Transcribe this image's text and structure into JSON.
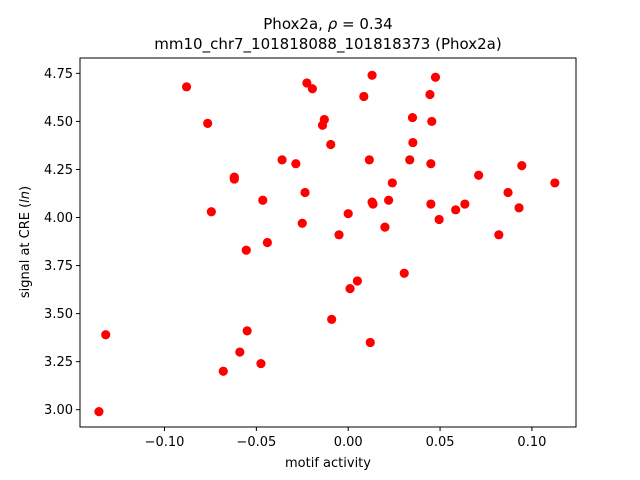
{
  "chart_data": {
    "type": "scatter",
    "title_line1_prefix": "Phox2a, ",
    "title_rho_symbol": "ρ",
    "title_rho_value": " = 0.34",
    "title_line2": "mm10_chr7_101818088_101818373 (Phox2a)",
    "xlabel": "motif activity",
    "ylabel_prefix": "signal at CRE (",
    "ylabel_italic": "ln",
    "ylabel_suffix": ")",
    "xlim": [
      -0.146,
      0.124
    ],
    "ylim": [
      2.91,
      4.83
    ],
    "xticks": [
      -0.1,
      -0.05,
      0.0,
      0.05,
      0.1
    ],
    "xtick_labels": [
      "−0.10",
      "−0.05",
      "0.00",
      "0.05",
      "0.10"
    ],
    "yticks": [
      3.0,
      3.25,
      3.5,
      3.75,
      4.0,
      4.25,
      4.5,
      4.75
    ],
    "ytick_labels": [
      "3.00",
      "3.25",
      "3.50",
      "3.75",
      "4.00",
      "4.25",
      "4.50",
      "4.75"
    ],
    "marker_color": "#ff0000",
    "grid": false,
    "points": [
      {
        "x": -0.1357,
        "y": 2.99
      },
      {
        "x": -0.132,
        "y": 3.39
      },
      {
        "x": -0.088,
        "y": 4.68
      },
      {
        "x": -0.0765,
        "y": 4.49
      },
      {
        "x": -0.0745,
        "y": 4.03
      },
      {
        "x": -0.068,
        "y": 3.2
      },
      {
        "x": -0.062,
        "y": 4.21
      },
      {
        "x": -0.062,
        "y": 4.2
      },
      {
        "x": -0.059,
        "y": 3.3
      },
      {
        "x": -0.0555,
        "y": 3.83
      },
      {
        "x": -0.055,
        "y": 3.41
      },
      {
        "x": -0.0475,
        "y": 3.24
      },
      {
        "x": -0.0465,
        "y": 4.09
      },
      {
        "x": -0.044,
        "y": 3.87
      },
      {
        "x": -0.036,
        "y": 4.3
      },
      {
        "x": -0.0285,
        "y": 4.28
      },
      {
        "x": -0.025,
        "y": 3.97
      },
      {
        "x": -0.0235,
        "y": 4.13
      },
      {
        "x": -0.0225,
        "y": 4.7
      },
      {
        "x": -0.0195,
        "y": 4.67
      },
      {
        "x": -0.014,
        "y": 4.48
      },
      {
        "x": -0.013,
        "y": 4.51
      },
      {
        "x": -0.0095,
        "y": 4.38
      },
      {
        "x": -0.009,
        "y": 3.47
      },
      {
        "x": -0.005,
        "y": 3.91
      },
      {
        "x": 0.0,
        "y": 4.02
      },
      {
        "x": 0.001,
        "y": 3.63
      },
      {
        "x": 0.005,
        "y": 3.67
      },
      {
        "x": 0.0085,
        "y": 4.63
      },
      {
        "x": 0.0115,
        "y": 4.3
      },
      {
        "x": 0.012,
        "y": 3.35
      },
      {
        "x": 0.013,
        "y": 4.74
      },
      {
        "x": 0.013,
        "y": 4.08
      },
      {
        "x": 0.0135,
        "y": 4.07
      },
      {
        "x": 0.02,
        "y": 3.95
      },
      {
        "x": 0.022,
        "y": 4.09
      },
      {
        "x": 0.024,
        "y": 4.18
      },
      {
        "x": 0.0305,
        "y": 3.71
      },
      {
        "x": 0.0335,
        "y": 4.3
      },
      {
        "x": 0.035,
        "y": 4.52
      },
      {
        "x": 0.0352,
        "y": 4.39
      },
      {
        "x": 0.0445,
        "y": 4.64
      },
      {
        "x": 0.045,
        "y": 4.28
      },
      {
        "x": 0.045,
        "y": 4.07
      },
      {
        "x": 0.0455,
        "y": 4.5
      },
      {
        "x": 0.0475,
        "y": 4.73
      },
      {
        "x": 0.0495,
        "y": 3.99
      },
      {
        "x": 0.0585,
        "y": 4.04
      },
      {
        "x": 0.0635,
        "y": 4.07
      },
      {
        "x": 0.071,
        "y": 4.22
      },
      {
        "x": 0.082,
        "y": 3.91
      },
      {
        "x": 0.087,
        "y": 4.13
      },
      {
        "x": 0.093,
        "y": 4.05
      },
      {
        "x": 0.0945,
        "y": 4.27
      },
      {
        "x": 0.1125,
        "y": 4.18
      }
    ]
  }
}
